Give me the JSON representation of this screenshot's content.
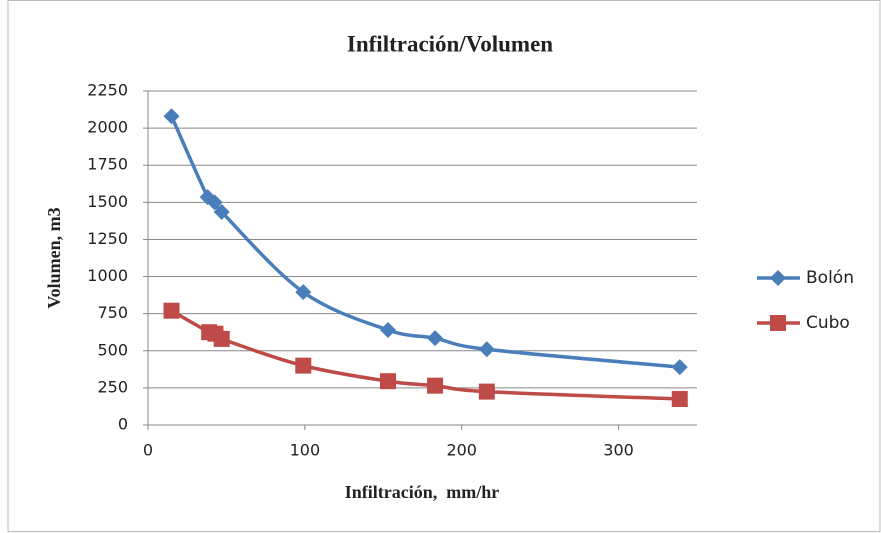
{
  "chart_data": {
    "type": "line",
    "title": "Infiltración/Volumen",
    "x_label": "Infiltración,  mm/hr",
    "y_label": "Volumen, m3",
    "series": [
      {
        "name": "Bolón",
        "color": "#4a7ebb",
        "marker": "diamond",
        "x": [
          15,
          38,
          42.5,
          47,
          99,
          153,
          183,
          216,
          339
        ],
        "values": [
          2080,
          1535,
          1500,
          1435,
          895,
          640,
          585,
          510,
          390
        ]
      },
      {
        "name": "Cubo",
        "color": "#be4b48",
        "marker": "square",
        "x": [
          15,
          39,
          43,
          47,
          99,
          153,
          183,
          216,
          339
        ],
        "values": [
          770,
          625,
          615,
          580,
          400,
          295,
          265,
          225,
          175
        ]
      }
    ],
    "xlim": [
      0,
      350
    ],
    "xticks": [
      0,
      100,
      200,
      300
    ],
    "ylim": [
      0,
      2250
    ],
    "yticks": [
      0,
      250,
      500,
      750,
      1000,
      1250,
      1500,
      1750,
      2000,
      2250
    ],
    "grid": true,
    "legend": "right",
    "smooth": true
  }
}
